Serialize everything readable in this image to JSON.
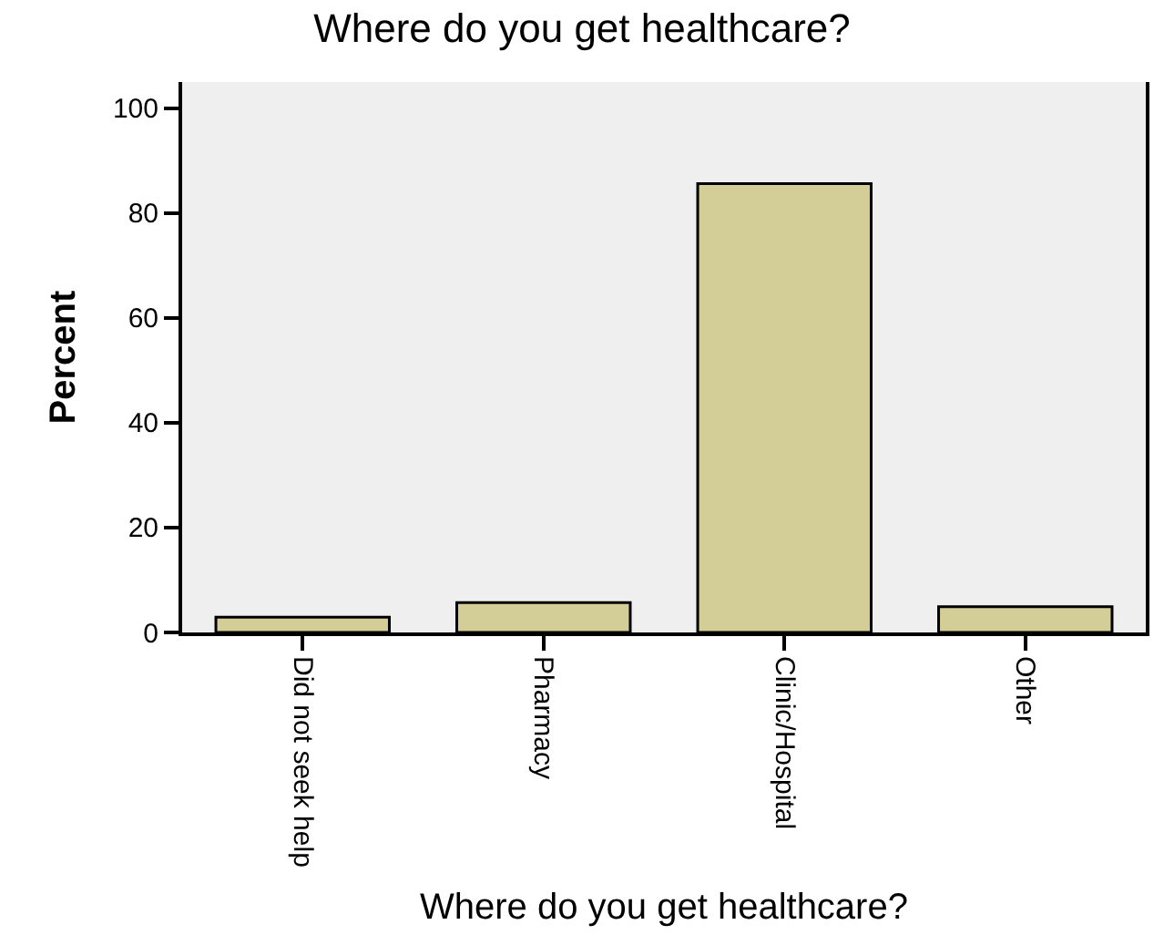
{
  "chart_data": {
    "type": "bar",
    "title": "Where do you get healthcare?",
    "xlabel": "Where do you get healthcare?",
    "ylabel": "Percent",
    "categories": [
      "Did not seek help",
      "Pharmacy",
      "Clinic/Hospital",
      "Other"
    ],
    "values": [
      2.9,
      5.7,
      85.6,
      4.9
    ],
    "color": "#d3cd97",
    "ylim": [
      0,
      105
    ],
    "yticks": [
      0,
      20,
      40,
      60,
      80,
      100
    ],
    "grid": false,
    "legend": false
  }
}
